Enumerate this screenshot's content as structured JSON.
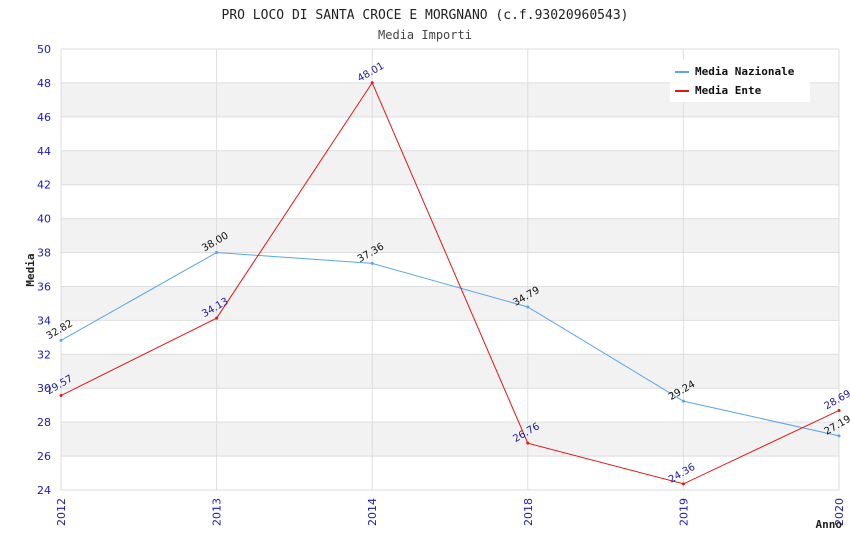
{
  "chart_data": {
    "type": "line",
    "title": "PRO LOCO DI SANTA CROCE E MORGNANO (c.f.93020960543)",
    "subtitle": "Media Importi",
    "xlabel": "Anno",
    "ylabel": "Media",
    "categories": [
      "2012",
      "2013",
      "2014",
      "2018",
      "2019",
      "2020"
    ],
    "ylim": [
      24,
      50
    ],
    "yticks": [
      24,
      26,
      28,
      30,
      32,
      34,
      36,
      38,
      40,
      42,
      44,
      46,
      48,
      50
    ],
    "grid": true,
    "legend_position": "top-right",
    "series": [
      {
        "name": "Media Nazionale",
        "color": "#5aa5e6",
        "label_color": "#111111",
        "values": [
          32.82,
          38.0,
          37.36,
          34.79,
          29.24,
          27.19
        ],
        "labels": [
          "32.82",
          "38.00",
          "37.36",
          "34.79",
          "29.24",
          "27.19"
        ]
      },
      {
        "name": "Media Ente",
        "color": "#e01818",
        "label_color": "#1a1a9a",
        "values": [
          29.57,
          34.13,
          48.01,
          26.76,
          24.36,
          28.69
        ],
        "labels": [
          "29.57",
          "34.13",
          "48.01",
          "26.76",
          "24.36",
          "28.69"
        ]
      }
    ]
  }
}
